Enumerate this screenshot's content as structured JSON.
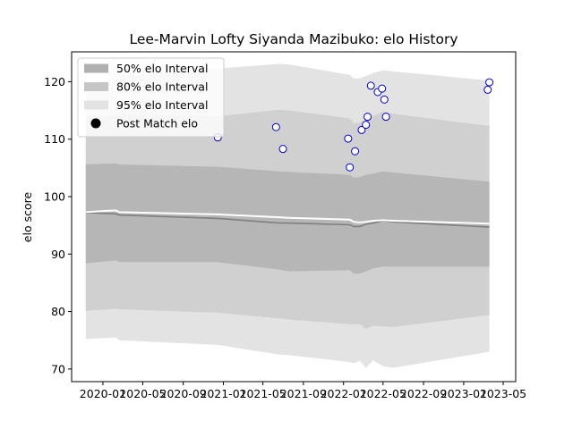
{
  "chart_data": {
    "type": "line",
    "title": "Lee-Marvin Lofty Siyanda Mazibuko: elo History",
    "ylabel": "elo score",
    "xlabel": "",
    "ylim": [
      67.8,
      125.2
    ],
    "xlim": [
      "2019-09-28",
      "2023-06-08"
    ],
    "grid": false,
    "legend_placement": "top-left",
    "x_ticks": [
      {
        "date": "2020-01-01",
        "label": "2020-01"
      },
      {
        "date": "2020-05-01",
        "label": "2020-05"
      },
      {
        "date": "2020-09-01",
        "label": "2020-09"
      },
      {
        "date": "2021-01-01",
        "label": "2021-01"
      },
      {
        "date": "2021-05-01",
        "label": "2021-05"
      },
      {
        "date": "2021-09-01",
        "label": "2021-09"
      },
      {
        "date": "2022-01-01",
        "label": "2022-01"
      },
      {
        "date": "2022-05-01",
        "label": "2022-05"
      },
      {
        "date": "2022-09-01",
        "label": "2022-09"
      },
      {
        "date": "2023-01-01",
        "label": "2023-01"
      },
      {
        "date": "2023-05-01",
        "label": "2023-05"
      }
    ],
    "y_ticks": [
      70,
      80,
      90,
      100,
      110,
      120
    ],
    "legend": [
      {
        "label": "50% elo Interval",
        "color": "#b0b0b0",
        "kind": "patch"
      },
      {
        "label": "80% elo Interval",
        "color": "#c6c6c6",
        "kind": "patch"
      },
      {
        "label": "95% elo Interval",
        "color": "#e3e3e3",
        "kind": "patch"
      },
      {
        "label": "Post Match elo",
        "color": "#000000",
        "kind": "marker"
      }
    ],
    "colors": {
      "band95": "#e3e3e3",
      "band80": "#d0d0d0",
      "band50": "#b6b6b6",
      "mean_line": "#7f7f7f",
      "median_line": "#ffffff",
      "marker_edge": "#0000cc",
      "marker_face": "#ffffff"
    },
    "series": [
      {
        "name": "elo mean",
        "x": [
          "2019-11-10",
          "2020-02-10",
          "2020-02-20",
          "2020-12-15",
          "2021-06-20",
          "2021-07-20",
          "2022-01-20",
          "2022-02-01",
          "2022-02-20",
          "2022-03-10",
          "2022-04-01",
          "2022-05-01",
          "2022-06-01",
          "2023-03-20"
        ],
        "y": [
          97.2,
          97.0,
          96.8,
          96.2,
          95.4,
          95.4,
          95.1,
          94.8,
          94.8,
          95.2,
          95.4,
          95.8,
          95.6,
          94.7
        ]
      },
      {
        "name": "elo median",
        "x": [
          "2019-11-10",
          "2020-01-01",
          "2020-02-10",
          "2020-02-20",
          "2020-12-15",
          "2021-06-20",
          "2021-07-20",
          "2022-01-20",
          "2022-02-01",
          "2022-02-20",
          "2022-03-10",
          "2022-04-01",
          "2022-05-01",
          "2022-06-01",
          "2023-03-20"
        ],
        "y": [
          97.3,
          97.5,
          97.6,
          97.3,
          96.9,
          96.4,
          96.3,
          96.0,
          95.6,
          95.5,
          95.6,
          95.8,
          95.9,
          95.8,
          95.3
        ]
      }
    ],
    "bands": {
      "x": [
        "2019-11-10",
        "2020-02-10",
        "2020-02-20",
        "2020-12-15",
        "2021-06-20",
        "2021-07-20",
        "2022-01-20",
        "2022-02-01",
        "2022-02-20",
        "2022-03-10",
        "2022-04-01",
        "2022-05-01",
        "2022-06-01",
        "2023-03-20"
      ],
      "p95_low": [
        75.2,
        75.5,
        75.0,
        74.2,
        72.5,
        72.4,
        71.2,
        71.0,
        71.4,
        70.2,
        71.5,
        70.5,
        70.2,
        73.0
      ],
      "p80_low": [
        80.1,
        80.5,
        80.4,
        79.8,
        78.8,
        78.6,
        77.8,
        77.8,
        77.8,
        77.0,
        77.5,
        77.4,
        77.3,
        79.4
      ],
      "p50_low": [
        88.4,
        88.9,
        88.6,
        88.6,
        87.3,
        87.0,
        87.2,
        86.6,
        86.6,
        87.0,
        87.5,
        87.8,
        87.8,
        87.8
      ],
      "p50_high": [
        105.6,
        105.8,
        105.6,
        105.2,
        104.4,
        104.3,
        103.8,
        103.3,
        103.4,
        103.8,
        104.0,
        104.4,
        104.2,
        102.6
      ],
      "p80_high": [
        113.8,
        114.1,
        114.3,
        114.0,
        115.1,
        115.0,
        113.6,
        112.8,
        112.8,
        113.4,
        114.0,
        114.8,
        114.4,
        112.3
      ],
      "p95_high": [
        119.7,
        120.2,
        121.0,
        122.3,
        123.1,
        123.0,
        121.2,
        120.6,
        120.6,
        121.0,
        121.5,
        122.0,
        121.8,
        120.2
      ]
    },
    "points": {
      "name": "Post Match elo",
      "x": [
        "2020-12-15",
        "2021-06-10",
        "2021-07-01",
        "2022-01-15",
        "2022-01-20",
        "2022-02-05",
        "2022-02-25",
        "2022-03-25",
        "2022-03-10",
        "2022-03-15",
        "2022-04-15",
        "2022-04-28",
        "2022-05-05",
        "2022-05-10",
        "2023-03-15",
        "2023-03-20"
      ],
      "y": [
        110.3,
        112.1,
        108.3,
        110.1,
        105.1,
        107.9,
        111.6,
        119.3,
        112.5,
        113.9,
        118.2,
        118.8,
        116.9,
        113.9,
        118.6,
        119.9
      ]
    }
  }
}
